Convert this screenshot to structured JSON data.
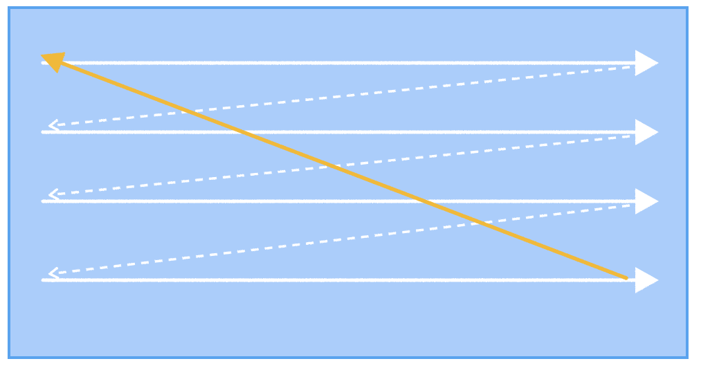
{
  "colors": {
    "page_background": "#ffffff",
    "panel_fill": "#abcdfa",
    "panel_border": "#5aa3ee",
    "scan_line": "#ffffff",
    "return_line": "#ffffff",
    "retrace_line": "#f0b93a"
  },
  "diagram": {
    "type": "raster-scan",
    "scan_lines": 4,
    "scan_direction": "left-to-right",
    "line_return": "dashed-diagonal-right-to-left",
    "frame_retrace": "solid-diagonal-bottom-right-to-top-left",
    "icons": {
      "scan_arrow": "arrow-right-icon",
      "return_arrow": "arrow-left-icon",
      "retrace_arrow": "arrow-up-left-icon"
    }
  }
}
